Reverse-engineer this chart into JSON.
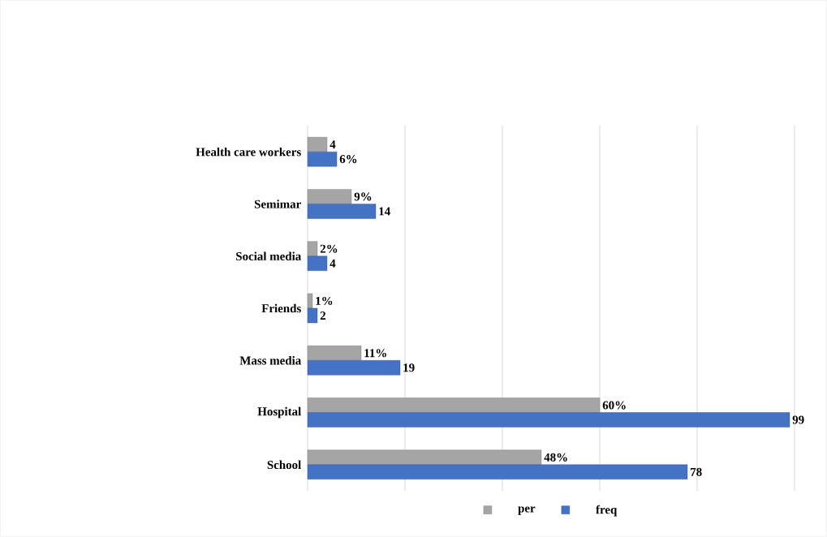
{
  "chart_data": {
    "type": "bar",
    "orientation": "horizontal",
    "categories": [
      "Health care workers",
      "Semimar",
      "Social media",
      "Friends",
      "Mass media",
      "Hospital",
      "School"
    ],
    "series": [
      {
        "name": "per",
        "color": "#a5a5a5",
        "values": [
          4,
          9,
          2,
          1,
          11,
          60,
          48
        ],
        "value_labels": [
          "4",
          "9%",
          "2%",
          "1%",
          "11%",
          "60%",
          "48%"
        ]
      },
      {
        "name": "freq",
        "color": "#4472c4",
        "values": [
          6,
          14,
          4,
          2,
          19,
          99,
          78
        ],
        "value_labels": [
          "6%",
          "14",
          "4",
          "2",
          "19",
          "99",
          "78"
        ]
      }
    ],
    "xlim": [
      0,
      100
    ],
    "xticks": [
      {
        "value": 0,
        "label": null
      },
      {
        "value": 20,
        "label": null
      },
      {
        "value": 40,
        "label": null
      },
      {
        "value": 60,
        "label": null
      },
      {
        "value": 80,
        "label": null
      },
      {
        "value": 100,
        "label": null
      }
    ],
    "tick_labels": "y",
    "grid": "x",
    "legend": "bottom"
  }
}
